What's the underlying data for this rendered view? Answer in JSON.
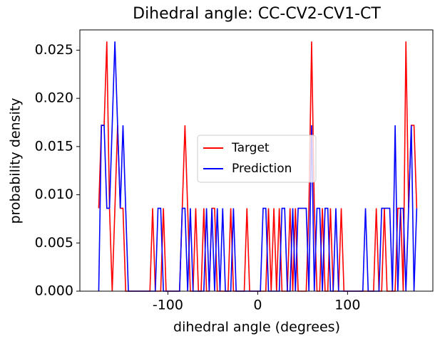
{
  "chart_data": {
    "type": "line",
    "title": "Dihedral angle: CC-CV2-CV1-CT",
    "x_label": "dihedral angle (degrees)",
    "y_label": "probability density",
    "x": [
      -177,
      -174,
      -171,
      -168,
      -165,
      -162,
      -159,
      -156,
      -153,
      -150,
      -147,
      -144,
      -141,
      -138,
      -135,
      -132,
      -129,
      -126,
      -123,
      -120,
      -117,
      -114,
      -111,
      -108,
      -105,
      -102,
      -99,
      -96,
      -93,
      -90,
      -87,
      -84,
      -81,
      -78,
      -75,
      -72,
      -69,
      -66,
      -63,
      -60,
      -57,
      -54,
      -51,
      -48,
      -45,
      -42,
      -39,
      -36,
      -33,
      -30,
      -27,
      -24,
      -21,
      -18,
      -15,
      -12,
      -9,
      -6,
      -3,
      0,
      3,
      6,
      9,
      12,
      15,
      18,
      21,
      24,
      27,
      30,
      33,
      36,
      39,
      42,
      45,
      48,
      51,
      54,
      57,
      60,
      63,
      66,
      69,
      72,
      75,
      78,
      81,
      84,
      87,
      90,
      93,
      96,
      99,
      102,
      105,
      108,
      111,
      114,
      117,
      120,
      123,
      126,
      129,
      132,
      135,
      138,
      141,
      144,
      147,
      150,
      153,
      156,
      159,
      162,
      165,
      168,
      171,
      174,
      177
    ],
    "series": [
      {
        "name": "Target",
        "color": "#ff0000",
        "values": [
          0.0086,
          0.0172,
          0.0172,
          0.0259,
          0.0086,
          0,
          0.0086,
          0.0172,
          0.0086,
          0.0086,
          0,
          0,
          0,
          0,
          0,
          0,
          0,
          0,
          0,
          0,
          0.0086,
          0,
          0,
          0,
          0.0086,
          0,
          0,
          0,
          0,
          0,
          0,
          0.0086,
          0.0172,
          0.0086,
          0,
          0,
          0.0086,
          0,
          0,
          0.0086,
          0,
          0,
          0.0086,
          0.0086,
          0,
          0,
          0,
          0,
          0,
          0.0086,
          0,
          0,
          0,
          0,
          0,
          0.0086,
          0,
          0,
          0,
          0,
          0,
          0,
          0,
          0.0086,
          0,
          0.0086,
          0,
          0.0086,
          0,
          0,
          0,
          0.0086,
          0,
          0.0086,
          0,
          0,
          0,
          0,
          0.0086,
          0.0259,
          0.0086,
          0,
          0,
          0.0086,
          0,
          0,
          0.0086,
          0,
          0,
          0,
          0.0086,
          0,
          0,
          0,
          0,
          0,
          0,
          0,
          0,
          0,
          0,
          0,
          0,
          0.0086,
          0,
          0,
          0.0086,
          0,
          0,
          0,
          0,
          0.0086,
          0.0086,
          0,
          0.0259,
          0.0086,
          0.0172,
          0.0172,
          0.0086
        ]
      },
      {
        "name": "Prediction",
        "color": "#0000ff",
        "values": [
          0,
          0.0172,
          0.0172,
          0.0086,
          0.0086,
          0.0172,
          0.0259,
          0.0172,
          0.0086,
          0.0172,
          0.0086,
          0,
          0,
          0,
          0,
          0,
          0,
          0,
          0,
          0,
          0,
          0,
          0.0086,
          0.0086,
          0,
          0,
          0,
          0,
          0,
          0,
          0,
          0.0086,
          0.0086,
          0,
          0.0086,
          0,
          0,
          0,
          0,
          0,
          0.0086,
          0,
          0.0086,
          0,
          0.0086,
          0,
          0.0086,
          0,
          0,
          0,
          0.0086,
          0,
          0,
          0,
          0,
          0,
          0,
          0,
          0,
          0,
          0,
          0.0086,
          0.0086,
          0,
          0,
          0,
          0,
          0,
          0.0086,
          0.0086,
          0,
          0,
          0.0086,
          0,
          0.0086,
          0.0086,
          0.0086,
          0.0086,
          0,
          0.0172,
          0,
          0.0086,
          0.0086,
          0,
          0.0086,
          0.0086,
          0,
          0,
          0.0086,
          0,
          0,
          0,
          0,
          0,
          0,
          0,
          0,
          0,
          0,
          0.0086,
          0,
          0,
          0,
          0,
          0,
          0.0086,
          0.0086,
          0.0086,
          0.0086,
          0,
          0.0172,
          0,
          0.0086,
          0.0086,
          0,
          0.0086,
          0.0172,
          0,
          0.0086
        ]
      }
    ],
    "xlim": [
      -198,
      195
    ],
    "ylim": [
      0,
      0.0271
    ],
    "xticks": [
      -100,
      0,
      100
    ],
    "yticks": [
      {
        "value": 0,
        "label": "0.000"
      },
      {
        "value": 0.005,
        "label": "0.005"
      },
      {
        "value": 0.01,
        "label": "0.010"
      },
      {
        "value": 0.015,
        "label": "0.015"
      },
      {
        "value": 0.02,
        "label": "0.020"
      },
      {
        "value": 0.025,
        "label": "0.025"
      }
    ],
    "legend": "center"
  }
}
